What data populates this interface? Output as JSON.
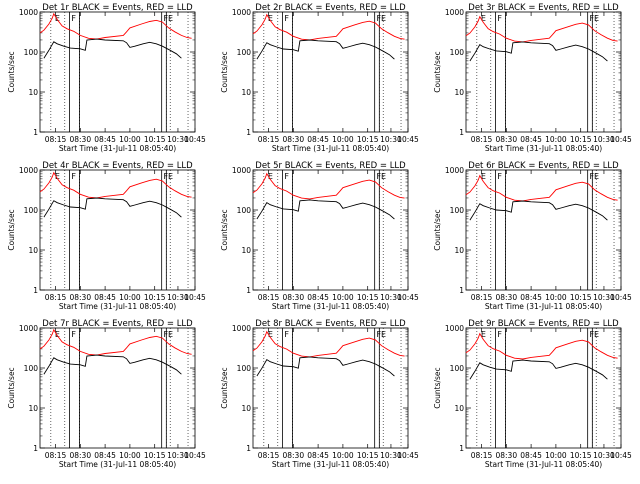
{
  "chart_data": {
    "type": "line",
    "x_unit": "UT (31-Jul-11)",
    "y_scale": "log",
    "ylim": [
      1,
      1000
    ],
    "xlim": [
      "08:05:40",
      "10:45:00"
    ],
    "xlabel": "Start Time (31-Jul-11 08:05:40)",
    "ylabel": "Counts/sec",
    "x_ticks": [
      "08:15",
      "08:30",
      "08:45",
      "10:00",
      "10:15",
      "10:30",
      "10:45"
    ],
    "y_ticks": [
      "1",
      "10",
      "100",
      "1000"
    ],
    "event_marks": [
      {
        "label": "E",
        "time": "08:14"
      },
      {
        "label": "F",
        "time": "08:24"
      },
      {
        "label": "FE",
        "time": "10:20"
      }
    ],
    "panels": [
      {
        "title": "Det 1r BLACK = Events, RED = LLD",
        "red_scale": 1.0,
        "black_scale": 1.0
      },
      {
        "title": "Det 2r BLACK = Events, RED = LLD",
        "red_scale": 0.95,
        "black_scale": 0.95
      },
      {
        "title": "Det 3r BLACK = Events, RED = LLD",
        "red_scale": 0.85,
        "black_scale": 0.85
      },
      {
        "title": "Det 4r BLACK = Events, RED = LLD",
        "red_scale": 0.95,
        "black_scale": 0.95
      },
      {
        "title": "Det 5r BLACK = Events, RED = LLD",
        "red_scale": 0.9,
        "black_scale": 0.85
      },
      {
        "title": "Det 6r BLACK = Events, RED = LLD",
        "red_scale": 0.8,
        "black_scale": 0.8
      },
      {
        "title": "Det 7r BLACK = Events, RED = LLD",
        "red_scale": 1.0,
        "black_scale": 1.0
      },
      {
        "title": "Det 8r BLACK = Events, RED = LLD",
        "red_scale": 0.9,
        "black_scale": 0.9
      },
      {
        "title": "Det 9r BLACK = Events, RED = LLD",
        "red_scale": 0.8,
        "black_scale": 0.75
      }
    ],
    "series": [
      {
        "name": "RED = LLD",
        "color": "#ff0000",
        "points": [
          [
            "08:05",
            300
          ],
          [
            "08:08",
            350
          ],
          [
            "08:11",
            500
          ],
          [
            "08:13",
            700
          ],
          [
            "08:14",
            900
          ],
          [
            "08:16",
            650
          ],
          [
            "08:19",
            450
          ],
          [
            "08:22",
            380
          ],
          [
            "08:26",
            330
          ],
          [
            "08:30",
            260
          ],
          [
            "08:35",
            220
          ],
          [
            "08:40",
            210
          ],
          [
            "08:45",
            230
          ],
          [
            "09:40",
            260
          ],
          [
            "09:50",
            320
          ],
          [
            "10:00",
            400
          ],
          [
            "10:07",
            500
          ],
          [
            "10:12",
            580
          ],
          [
            "10:16",
            620
          ],
          [
            "10:20",
            560
          ],
          [
            "10:24",
            400
          ],
          [
            "10:28",
            320
          ],
          [
            "10:33",
            260
          ],
          [
            "10:38",
            230
          ],
          [
            "10:42",
            220
          ]
        ]
      },
      {
        "name": "BLACK = Events",
        "color": "#000000",
        "points": [
          [
            "08:08",
            70
          ],
          [
            "08:11",
            110
          ],
          [
            "08:14",
            180
          ],
          [
            "08:16",
            160
          ],
          [
            "08:20",
            140
          ],
          [
            "08:24",
            125
          ],
          [
            "08:30",
            120
          ],
          [
            "08:33",
            110
          ],
          [
            "08:34",
            200
          ],
          [
            "08:40",
            210
          ],
          [
            "08:45",
            200
          ],
          [
            "09:40",
            190
          ],
          [
            "09:50",
            170
          ],
          [
            "10:00",
            130
          ],
          [
            "10:03",
            140
          ],
          [
            "10:08",
            160
          ],
          [
            "10:12",
            175
          ],
          [
            "10:16",
            160
          ],
          [
            "10:20",
            140
          ],
          [
            "10:25",
            110
          ],
          [
            "10:29",
            90
          ],
          [
            "10:33",
            70
          ]
        ]
      }
    ]
  }
}
